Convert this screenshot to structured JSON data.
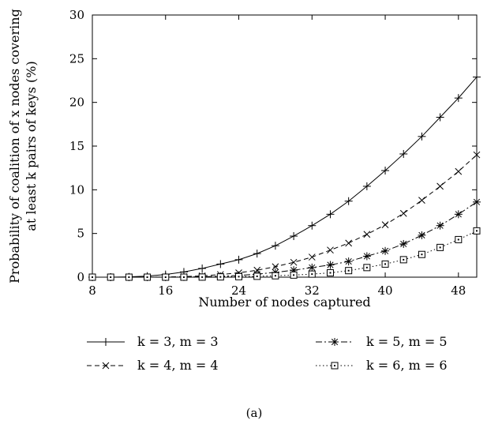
{
  "chart_data": {
    "type": "line",
    "title": "",
    "xlabel": "Number of nodes captured",
    "ylabel_lines": [
      "Probability of coalition of x nodes covering",
      "at least k pairs of keys (%)"
    ],
    "xlim": [
      8,
      50
    ],
    "ylim": [
      0,
      30
    ],
    "xticks": [
      8,
      16,
      24,
      32,
      40,
      48
    ],
    "yticks": [
      0,
      5,
      10,
      15,
      20,
      25,
      30
    ],
    "grid": false,
    "legend_position": "bottom",
    "caption": "(a)",
    "x": [
      8,
      10,
      12,
      14,
      16,
      18,
      20,
      22,
      24,
      26,
      28,
      30,
      32,
      34,
      36,
      38,
      40,
      42,
      44,
      46,
      48,
      50
    ],
    "series": [
      {
        "name": "k = 3, m = 3",
        "marker": "plus",
        "dash": "solid",
        "values": [
          0,
          0,
          0.03,
          0.12,
          0.3,
          0.6,
          1.0,
          1.5,
          2.0,
          2.7,
          3.6,
          4.7,
          5.9,
          7.2,
          8.7,
          10.4,
          12.2,
          14.1,
          16.1,
          18.3,
          20.5,
          22.9
        ]
      },
      {
        "name": "k = 4, m = 4",
        "marker": "x",
        "dash": "dashed",
        "values": [
          0,
          0,
          0,
          0,
          0.02,
          0.06,
          0.15,
          0.3,
          0.5,
          0.8,
          1.2,
          1.7,
          2.3,
          3.1,
          3.9,
          4.9,
          6.0,
          7.3,
          8.8,
          10.4,
          12.1,
          14.0
        ]
      },
      {
        "name": "k = 5, m = 5",
        "marker": "asterisk",
        "dash": "dashdot",
        "values": [
          0,
          0,
          0,
          0,
          0,
          0.02,
          0.05,
          0.1,
          0.2,
          0.35,
          0.55,
          0.8,
          1.1,
          1.4,
          1.8,
          2.4,
          3.0,
          3.8,
          4.8,
          5.9,
          7.2,
          8.6
        ]
      },
      {
        "name": "k = 6, m = 6",
        "marker": "square",
        "dash": "dotted",
        "values": [
          0,
          0,
          0,
          0,
          0,
          0,
          0.01,
          0.03,
          0.06,
          0.1,
          0.16,
          0.24,
          0.35,
          0.5,
          0.75,
          1.1,
          1.5,
          2.0,
          2.6,
          3.4,
          4.3,
          5.3
        ]
      }
    ]
  }
}
